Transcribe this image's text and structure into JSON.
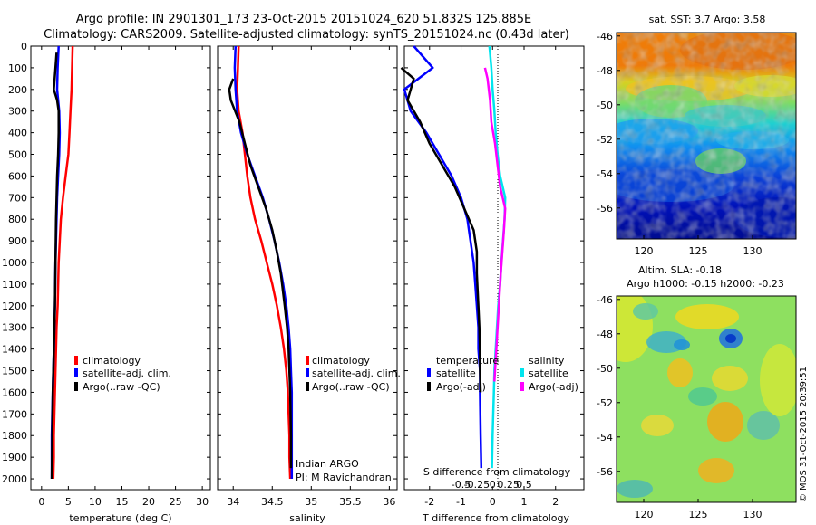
{
  "title_line1": "Argo profile: IN 2901301_173 23-Oct-2015 20151024_620 51.832S 125.885E",
  "title_line2": "Climatology: CARS2009. Satellite-adjusted climatology: synTS_20151024.nc (0.43d later)",
  "depth_ticks": [
    "0",
    "100",
    "200",
    "300",
    "400",
    "500",
    "600",
    "700",
    "800",
    "900",
    "1000",
    "1100",
    "1200",
    "1300",
    "1400",
    "1500",
    "1600",
    "1700",
    "1800",
    "1900",
    "2000"
  ],
  "chart_data": [
    {
      "type": "line",
      "xlabel": "temperature (deg C)",
      "x_ticks": [
        "0",
        "5",
        "10",
        "15",
        "20",
        "25",
        "30"
      ],
      "xlim": [
        -2,
        31.5
      ],
      "ylim": [
        0,
        2050
      ],
      "y_reversed": true,
      "legend": [
        "climatology",
        "satellite-adj. clim.",
        "Argo(..raw -QC)"
      ],
      "series": [
        {
          "name": "climatology",
          "color": "#ff0000",
          "x": [
            5.8,
            5.7,
            5.6,
            5.4,
            5.2,
            5.0,
            4.5,
            4.0,
            3.6,
            3.4,
            3.2,
            3.0,
            2.8,
            2.7,
            2.6,
            2.5,
            2.4,
            2.3,
            2.3,
            2.2
          ],
          "y": [
            0,
            100,
            200,
            300,
            400,
            500,
            600,
            700,
            800,
            900,
            1000,
            1200,
            1300,
            1400,
            1500,
            1600,
            1700,
            1800,
            1900,
            2000
          ]
        },
        {
          "name": "satellite-adj. clim.",
          "color": "#0000ff",
          "x": [
            3.2,
            3.0,
            2.9,
            3.3,
            3.4,
            3.3,
            3.1,
            2.9,
            2.8,
            2.7,
            2.6,
            2.5,
            2.4,
            2.3,
            2.2,
            2.1,
            2.0,
            1.9,
            1.9
          ],
          "y": [
            0,
            100,
            200,
            300,
            400,
            500,
            600,
            700,
            800,
            900,
            1000,
            1200,
            1300,
            1400,
            1500,
            1600,
            1700,
            1800,
            2000
          ]
        },
        {
          "name": "Argo(..raw -QC)",
          "color": "#000000",
          "x": [
            2.8,
            2.6,
            2.3,
            2.9,
            3.2,
            3.2,
            3.1,
            2.9,
            2.8,
            2.7,
            2.6,
            2.5,
            2.4,
            2.3,
            2.2,
            2.1,
            2.0,
            1.9
          ],
          "y": [
            30,
            100,
            200,
            250,
            300,
            400,
            500,
            600,
            700,
            800,
            1000,
            1200,
            1300,
            1400,
            1500,
            1600,
            1800,
            2000
          ]
        }
      ]
    },
    {
      "type": "line",
      "xlabel": "salinity",
      "x_ticks": [
        "34",
        "34.5",
        "35",
        "35.5",
        "36"
      ],
      "xlim": [
        33.8,
        36.1
      ],
      "ylim": [
        0,
        2050
      ],
      "y_reversed": true,
      "legend": [
        "climatology",
        "satellite-adj. clim.",
        "Argo(..raw -QC)"
      ],
      "annotation": [
        "Indian ARGO",
        "PI: M Ravichandran"
      ],
      "series": [
        {
          "name": "climatology",
          "color": "#ff0000",
          "x": [
            34.07,
            34.06,
            34.05,
            34.07,
            34.12,
            34.15,
            34.18,
            34.22,
            34.28,
            34.36,
            34.43,
            34.5,
            34.56,
            34.61,
            34.65,
            34.68,
            34.7,
            34.71,
            34.72,
            34.72,
            34.73
          ],
          "y": [
            0,
            100,
            200,
            300,
            400,
            500,
            600,
            700,
            800,
            900,
            1000,
            1100,
            1200,
            1300,
            1400,
            1500,
            1600,
            1700,
            1800,
            1900,
            2000
          ]
        },
        {
          "name": "satellite-adj. clim.",
          "color": "#0000ff",
          "x": [
            34.03,
            34.02,
            34.03,
            34.05,
            34.1,
            34.18,
            34.28,
            34.38,
            34.46,
            34.53,
            34.59,
            34.64,
            34.68,
            34.71,
            34.73,
            34.74,
            34.75,
            34.75,
            34.75
          ],
          "y": [
            0,
            100,
            200,
            300,
            400,
            500,
            600,
            700,
            800,
            900,
            1000,
            1100,
            1200,
            1300,
            1400,
            1500,
            1600,
            1800,
            2000
          ]
        },
        {
          "name": "Argo(..raw -QC)",
          "color": "#000000",
          "x": [
            34.0,
            33.95,
            33.97,
            34.08,
            34.15,
            34.22,
            34.32,
            34.42,
            34.5,
            34.56,
            34.61,
            34.66,
            34.69,
            34.71,
            34.73,
            34.74,
            34.74
          ],
          "y": [
            150,
            200,
            250,
            350,
            450,
            550,
            650,
            750,
            850,
            950,
            1050,
            1200,
            1300,
            1400,
            1600,
            1800,
            1950
          ]
        }
      ]
    },
    {
      "type": "line",
      "xlabel": "T difference from climatology",
      "x_ticks": [
        "-2",
        "-1",
        "0",
        "1",
        "2"
      ],
      "top_label": "S difference from climatology",
      "top_ticks": [
        "-0.5",
        "-0.25",
        "0",
        "0.25",
        "0.5"
      ],
      "xlim": [
        -2.8,
        2.9
      ],
      "ylim": [
        0,
        2050
      ],
      "y_reversed": true,
      "legend_groups": [
        {
          "heading": "temperature",
          "items": [
            "satellite",
            "Argo(-adj)"
          ]
        },
        {
          "heading": "salinity",
          "items": [
            "satellite",
            "Argo(-adj)"
          ]
        }
      ],
      "series": [
        {
          "name": "temperature satellite",
          "color": "#0000ff",
          "x": [
            -2.5,
            -1.9,
            -2.8,
            -2.6,
            -2.1,
            -1.7,
            -1.3,
            -1.0,
            -0.8,
            -0.7,
            -0.6,
            -0.55,
            -0.5,
            -0.45,
            -0.45,
            -0.4,
            -0.4,
            -0.38,
            -0.36
          ],
          "y": [
            0,
            100,
            200,
            300,
            400,
            500,
            600,
            700,
            800,
            900,
            1000,
            1100,
            1200,
            1300,
            1400,
            1500,
            1600,
            1800,
            1950
          ]
        },
        {
          "name": "temperature Argo(-adj)",
          "color": "#000000",
          "x": [
            -2.9,
            -2.5,
            -2.7,
            -2.3,
            -2.0,
            -1.6,
            -1.2,
            -0.9,
            -0.6,
            -0.5,
            -0.5,
            -0.45,
            -0.42,
            -0.4,
            -0.4,
            -0.38
          ],
          "y": [
            100,
            150,
            250,
            350,
            450,
            550,
            650,
            750,
            850,
            950,
            1050,
            1200,
            1300,
            1400,
            1500,
            1600
          ]
        },
        {
          "name": "salinity satellite",
          "color": "#00e5ee",
          "x": [
            -0.05,
            -0.02,
            0.0,
            0.03,
            0.05,
            0.08,
            0.12,
            0.2,
            0.19,
            0.14,
            0.12,
            0.09,
            0.07,
            0.05,
            0.03,
            0.02,
            0.0,
            -0.01
          ],
          "y": [
            0,
            100,
            200,
            300,
            400,
            500,
            600,
            700,
            800,
            1000,
            1100,
            1200,
            1300,
            1400,
            1500,
            1600,
            1800,
            1950
          ]
        },
        {
          "name": "salinity Argo(-adj)",
          "color": "#ff00ff",
          "x": [
            -0.12,
            -0.08,
            -0.04,
            -0.02,
            0.04,
            0.08,
            0.12,
            0.2,
            0.18,
            0.13,
            0.1,
            0.06,
            0.03
          ],
          "y": [
            100,
            150,
            250,
            350,
            450,
            550,
            650,
            750,
            850,
            1050,
            1200,
            1400,
            1550
          ]
        }
      ]
    },
    {
      "type": "heatmap",
      "title": "sat. SST: 3.7 Argo: 3.58",
      "x_ticks": [
        "120",
        "125",
        "130"
      ],
      "y_ticks": [
        "-46",
        "-48",
        "-50",
        "-52",
        "-54",
        "-56"
      ],
      "xlim": [
        117.5,
        134
      ],
      "ylim": [
        -57.8,
        -45.8
      ],
      "colormap": "jet"
    },
    {
      "type": "heatmap",
      "title_lines": [
        "Altim. SLA: -0.18",
        "Argo h1000: -0.15 h2000: -0.23"
      ],
      "x_ticks": [
        "120",
        "125",
        "130"
      ],
      "y_ticks": [
        "-46",
        "-48",
        "-50",
        "-52",
        "-54",
        "-56"
      ],
      "xlim": [
        117.5,
        134
      ],
      "ylim": [
        -57.8,
        -45.8
      ],
      "colormap": "jet"
    }
  ],
  "credit": "©IMOS 31-Oct-2015 20:39:51"
}
